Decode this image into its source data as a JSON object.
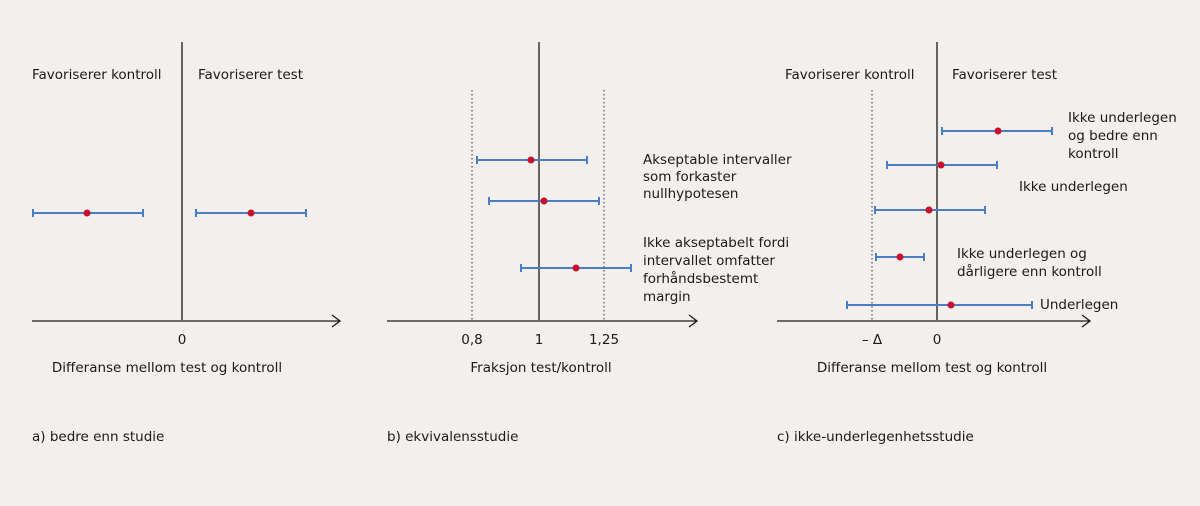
{
  "panels": [
    {
      "left_label": "Favoriserer kontroll",
      "right_label": "Favoriserer test",
      "ticks": [
        "0"
      ],
      "axis_title": "Differanse mellom test og kontroll",
      "caption": "a) bedre enn studie"
    },
    {
      "ticks": [
        "0,8",
        "1",
        "1,25"
      ],
      "axis_title": "Fraksjon test/kontroll",
      "caption": "b) ekvivalensstudie",
      "notes": [
        [
          "Akseptable intervaller",
          "som forkaster",
          "nullhypotesen"
        ],
        [
          "Ikke akseptabelt fordi",
          "intervallet omfatter",
          "forhåndsbestemt",
          "margin"
        ]
      ]
    },
    {
      "left_label": "Favoriserer kontroll",
      "right_label": "Favoriserer test",
      "ticks": [
        "– Δ",
        "0"
      ],
      "axis_title": "Differanse mellom test og kontroll",
      "caption": "c) ikke-underlegenhetsstudie",
      "notes": [
        [
          "Ikke underlegen",
          "og bedre enn",
          "kontroll"
        ],
        [
          "Ikke underlegen"
        ],
        [
          "Ikke underlegen og",
          "dårligere enn kontroll"
        ],
        [
          "Underlegen"
        ]
      ]
    }
  ]
}
